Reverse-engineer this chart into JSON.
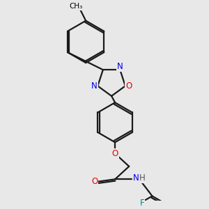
{
  "bg_color": "#e8e8e8",
  "bond_color": "#1a1a1a",
  "bond_width": 1.6,
  "atom_colors": {
    "N": "#0000ee",
    "O": "#ee0000",
    "F": "#008888",
    "NH_N": "#0000ee",
    "NH_H": "#444444"
  },
  "font_size": 8.5,
  "label_bg": "#e8e8e8"
}
